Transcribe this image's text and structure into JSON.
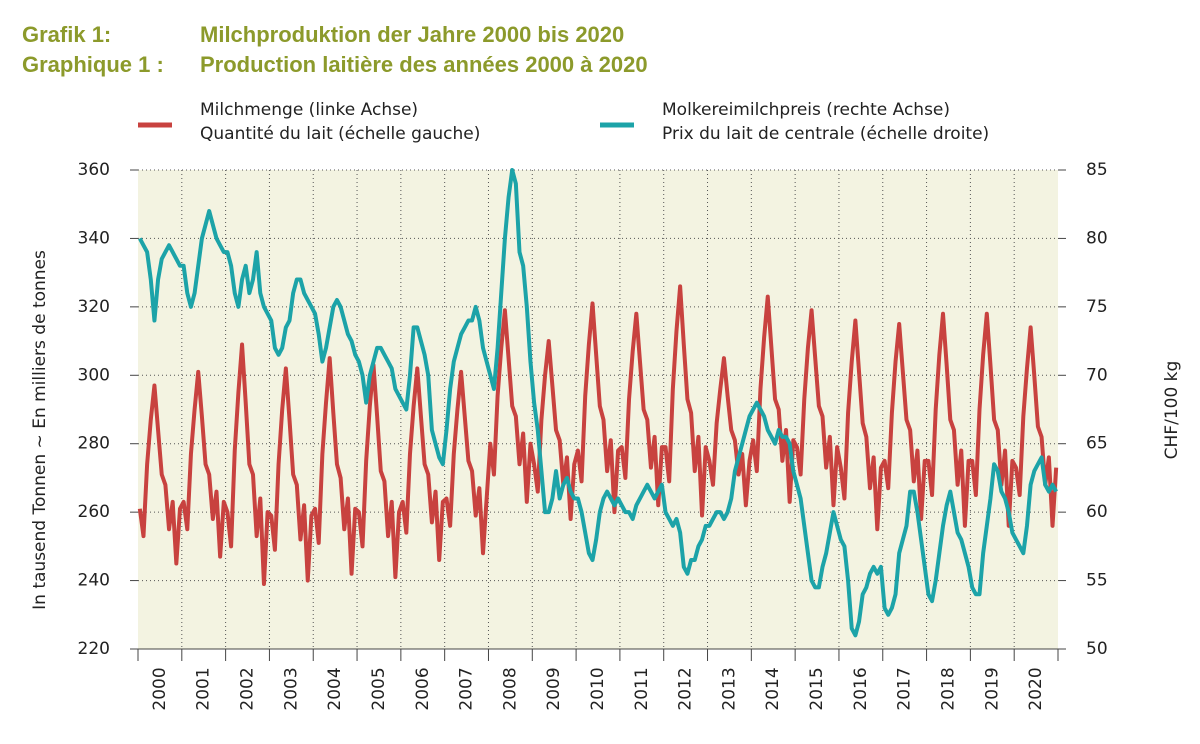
{
  "chart_data": {
    "type": "line",
    "title": [
      "Grafik 1:",
      "Milchproduktion der Jahre 2000 bis 2020"
    ],
    "subtitle": [
      "Graphique 1 :",
      "Production laitière des années 2000 à 2020"
    ],
    "ylabel": "In tausend Tonnen  ~  En milliers de tonnes",
    "y2label": "CHF/100 kg",
    "ylim": [
      220,
      360
    ],
    "yticks": [
      220,
      240,
      260,
      280,
      300,
      320,
      340,
      360
    ],
    "y2lim": [
      50,
      85
    ],
    "y2ticks": [
      50,
      55,
      60,
      65,
      70,
      75,
      80,
      85
    ],
    "grid": true,
    "categories": [
      null,
      null,
      null,
      null,
      null,
      null,
      "2000",
      null,
      null,
      null,
      null,
      null,
      null,
      null,
      null,
      null,
      null,
      null,
      "2001",
      null,
      null,
      null,
      null,
      null,
      null,
      null,
      null,
      null,
      null,
      null,
      "2002",
      null,
      null,
      null,
      null,
      null,
      null,
      null,
      null,
      null,
      null,
      null,
      "2003",
      null,
      null,
      null,
      null,
      null,
      null,
      null,
      null,
      null,
      null,
      null,
      "2004",
      null,
      null,
      null,
      null,
      null,
      null,
      null,
      null,
      null,
      null,
      null,
      "2005",
      null,
      null,
      null,
      null,
      null,
      null,
      null,
      null,
      null,
      null,
      null,
      "2006",
      null,
      null,
      null,
      null,
      null,
      null,
      null,
      null,
      null,
      null,
      null,
      "2007",
      null,
      null,
      null,
      null,
      null,
      null,
      null,
      null,
      null,
      null,
      null,
      "2008",
      null,
      null,
      null,
      null,
      null,
      null,
      null,
      null,
      null,
      null,
      null,
      "2009",
      null,
      null,
      null,
      null,
      null,
      null,
      null,
      null,
      null,
      null,
      null,
      "2010",
      null,
      null,
      null,
      null,
      null,
      null,
      null,
      null,
      null,
      null,
      null,
      "2011",
      null,
      null,
      null,
      null,
      null,
      null,
      null,
      null,
      null,
      null,
      null,
      "2012",
      null,
      null,
      null,
      null,
      null,
      null,
      null,
      null,
      null,
      null,
      null,
      "2013",
      null,
      null,
      null,
      null,
      null,
      null,
      null,
      null,
      null,
      null,
      null,
      "2014",
      null,
      null,
      null,
      null,
      null,
      null,
      null,
      null,
      null,
      null,
      null,
      "2015",
      null,
      null,
      null,
      null,
      null,
      null,
      null,
      null,
      null,
      null,
      null,
      "2016",
      null,
      null,
      null,
      null,
      null,
      null,
      null,
      null,
      null,
      null,
      null,
      "2017",
      null,
      null,
      null,
      null,
      null,
      null,
      null,
      null,
      null,
      null,
      null,
      "2018",
      null,
      null,
      null,
      null,
      null,
      null,
      null,
      null,
      null,
      null,
      null,
      "2019",
      null,
      null,
      null,
      null,
      null,
      null,
      null,
      null,
      null,
      null,
      null,
      "2020",
      null,
      null,
      null,
      null,
      null
    ],
    "series": [
      {
        "name": [
          "Milchmenge (linke Achse)",
          "Quantité du lait (échelle gauche)"
        ],
        "color": "#c8423f",
        "axis": "y",
        "values": [
          261,
          253,
          274,
          287,
          297,
          284,
          271,
          268,
          255,
          263,
          245,
          261,
          263,
          255,
          277,
          290,
          301,
          288,
          274,
          271,
          258,
          266,
          247,
          263,
          260,
          250,
          278,
          295,
          309,
          292,
          274,
          271,
          253,
          264,
          239,
          260,
          259,
          249,
          274,
          290,
          302,
          287,
          271,
          268,
          252,
          262,
          240,
          259,
          261,
          251,
          277,
          292,
          305,
          289,
          274,
          270,
          255,
          264,
          242,
          261,
          260,
          250,
          275,
          291,
          303,
          288,
          272,
          269,
          253,
          263,
          241,
          260,
          263,
          254,
          277,
          291,
          302,
          288,
          274,
          271,
          257,
          266,
          246,
          263,
          264,
          256,
          277,
          290,
          301,
          288,
          275,
          272,
          259,
          267,
          248,
          264,
          280,
          271,
          294,
          308,
          319,
          305,
          291,
          288,
          274,
          283,
          263,
          280,
          274,
          266,
          287,
          300,
          310,
          297,
          284,
          281,
          268,
          276,
          258,
          274,
          278,
          269,
          294,
          309,
          321,
          306,
          291,
          287,
          272,
          281,
          260,
          278,
          279,
          270,
          293,
          307,
          318,
          304,
          290,
          287,
          273,
          282,
          262,
          279,
          279,
          269,
          296,
          313,
          326,
          309,
          293,
          289,
          272,
          282,
          259,
          279,
          275,
          268,
          286,
          296,
          305,
          294,
          284,
          281,
          271,
          277,
          262,
          275,
          281,
          272,
          296,
          311,
          323,
          308,
          293,
          290,
          275,
          284,
          263,
          281,
          279,
          271,
          293,
          308,
          319,
          305,
          291,
          288,
          273,
          282,
          262,
          279,
          273,
          264,
          289,
          304,
          316,
          301,
          286,
          282,
          267,
          276,
          255,
          273,
          275,
          267,
          289,
          304,
          315,
          301,
          287,
          284,
          269,
          278,
          258,
          275,
          275,
          265,
          290,
          306,
          318,
          303,
          287,
          284,
          268,
          278,
          256,
          275,
          275,
          265,
          290,
          306,
          318,
          303,
          287,
          284,
          268,
          278,
          256,
          275,
          273,
          265,
          288,
          302,
          314,
          300,
          285,
          282,
          268,
          276,
          256,
          273
        ]
      },
      {
        "name": [
          "Molkereimilchpreis (rechte Achse)",
          "Prix du lait de centrale (échelle droite)"
        ],
        "color": "#1ca3a8",
        "axis": "y2",
        "values": [
          80,
          79.5,
          79,
          77,
          74,
          77,
          78.5,
          79,
          79.5,
          79,
          78.5,
          78,
          78,
          76,
          75,
          76,
          78,
          80,
          81,
          82,
          81,
          80,
          79.5,
          79,
          79,
          78,
          76,
          75,
          77,
          78,
          76,
          77,
          79,
          76,
          75,
          74.5,
          74,
          72,
          71.5,
          72,
          73.5,
          74,
          76,
          77,
          77,
          76,
          75.5,
          75,
          74.5,
          73,
          71,
          72,
          73.5,
          75,
          75.5,
          75,
          74,
          73,
          72.5,
          71.5,
          71,
          70,
          68,
          70,
          71,
          72,
          72,
          71.5,
          71,
          70.5,
          69,
          68.5,
          68,
          67.5,
          70,
          73.5,
          73.5,
          72.5,
          71.5,
          70,
          66,
          65,
          64,
          63.5,
          66,
          69,
          71,
          72,
          73,
          73.5,
          74,
          74,
          75,
          74,
          72,
          71,
          70,
          69,
          72,
          76,
          80,
          83,
          85,
          84,
          79,
          78,
          75,
          71,
          68,
          66,
          63,
          60,
          60,
          61,
          63,
          61,
          62,
          62.5,
          61.5,
          61,
          61,
          60,
          58.5,
          57,
          56.5,
          58,
          60,
          61,
          61.5,
          61,
          60.5,
          61,
          60.5,
          60,
          60,
          59.5,
          60.5,
          61,
          61.5,
          62,
          61.5,
          61,
          61.5,
          62,
          60,
          59.5,
          59,
          59.5,
          58.5,
          56,
          55.5,
          56.5,
          56.5,
          57.5,
          58,
          59,
          59,
          59.5,
          60,
          60,
          59.5,
          60,
          61,
          63,
          64,
          65,
          66,
          67,
          67.5,
          68,
          67.5,
          67,
          66,
          65.5,
          65,
          66,
          65.5,
          65.5,
          65,
          63,
          62,
          61,
          59,
          57,
          55,
          54.5,
          54.5,
          56,
          57,
          58.5,
          60,
          59,
          58,
          57.5,
          55,
          51.5,
          51,
          52,
          54,
          54.5,
          55.5,
          56,
          55.5,
          56,
          53,
          52.5,
          53,
          54,
          57,
          58,
          59,
          61.5,
          61.5,
          60,
          58,
          56,
          54,
          53.5,
          55,
          57,
          59,
          60.5,
          61.5,
          60,
          58.5,
          58,
          57,
          56,
          54.5,
          54,
          54,
          57,
          59,
          61,
          63.5,
          63,
          61.5,
          61,
          60,
          58.5,
          58,
          57.5,
          57,
          59,
          62,
          63,
          63.5,
          64,
          62,
          61.5,
          62,
          61.5
        ]
      }
    ]
  }
}
